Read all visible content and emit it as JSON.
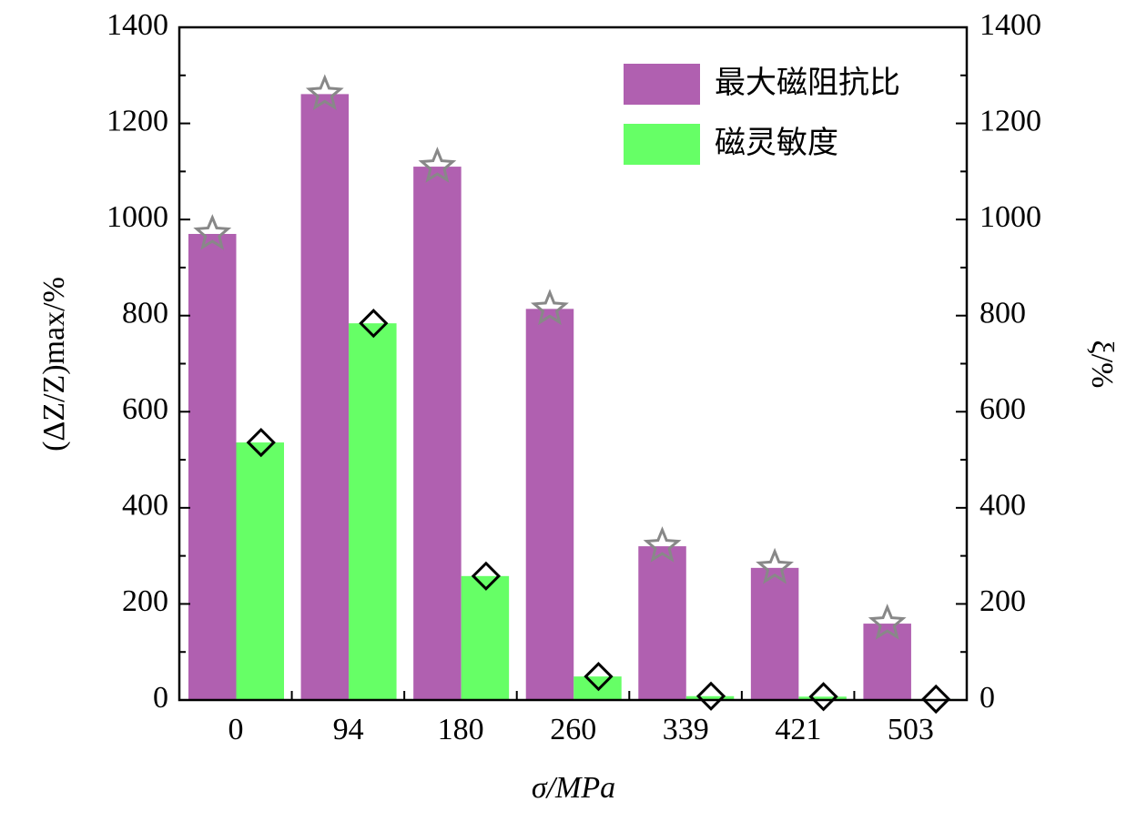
{
  "chart_data": {
    "type": "bar",
    "xlabel": "σ/MPa",
    "ylabel": "(ΔZ/Z)max/%",
    "y2label": "ξ/%",
    "categories": [
      "0",
      "94",
      "180",
      "260",
      "339",
      "421",
      "503"
    ],
    "series": [
      {
        "name": "最大磁阻抗比",
        "color": "#b060b0",
        "marker_color": "#888888",
        "values": [
          970,
          1261,
          1110,
          814,
          320,
          275,
          159
        ]
      },
      {
        "name": "磁灵敏度",
        "color": "#66ff66",
        "marker_color": "#000000",
        "axis": "y2",
        "values": [
          536,
          784,
          258,
          49,
          8,
          7,
          2
        ]
      }
    ],
    "ylim": [
      0,
      1400
    ],
    "yticks": [
      0,
      200,
      400,
      600,
      800,
      1000,
      1200,
      1400
    ],
    "y2lim": [
      0,
      1400
    ],
    "y2ticks": [
      0,
      200,
      400,
      600,
      800,
      1000,
      1200,
      1400
    ],
    "yminorticks": [
      100,
      300,
      500,
      700,
      900,
      1100,
      1300
    ],
    "legend": "top-right"
  }
}
